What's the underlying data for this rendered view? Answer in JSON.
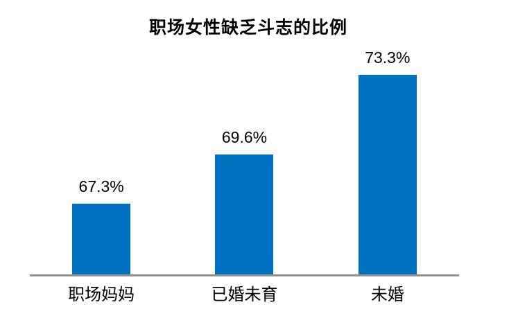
{
  "chart_data": {
    "type": "bar",
    "title": "职场女性缺乏斗志的比例",
    "categories": [
      "职场妈妈",
      "已婚未育",
      "未婚"
    ],
    "values": [
      67.3,
      69.6,
      73.3
    ],
    "value_labels": [
      "67.3%",
      "69.6%",
      "73.3%"
    ],
    "unit": "%",
    "xlabel": "",
    "ylabel": "",
    "ylim": [
      64,
      75
    ],
    "grid": false,
    "legend": false,
    "bar_color": "#0070C0",
    "axis_color": "#8f8f8f",
    "background_color": "#ffffff",
    "text_color": "#000000"
  }
}
